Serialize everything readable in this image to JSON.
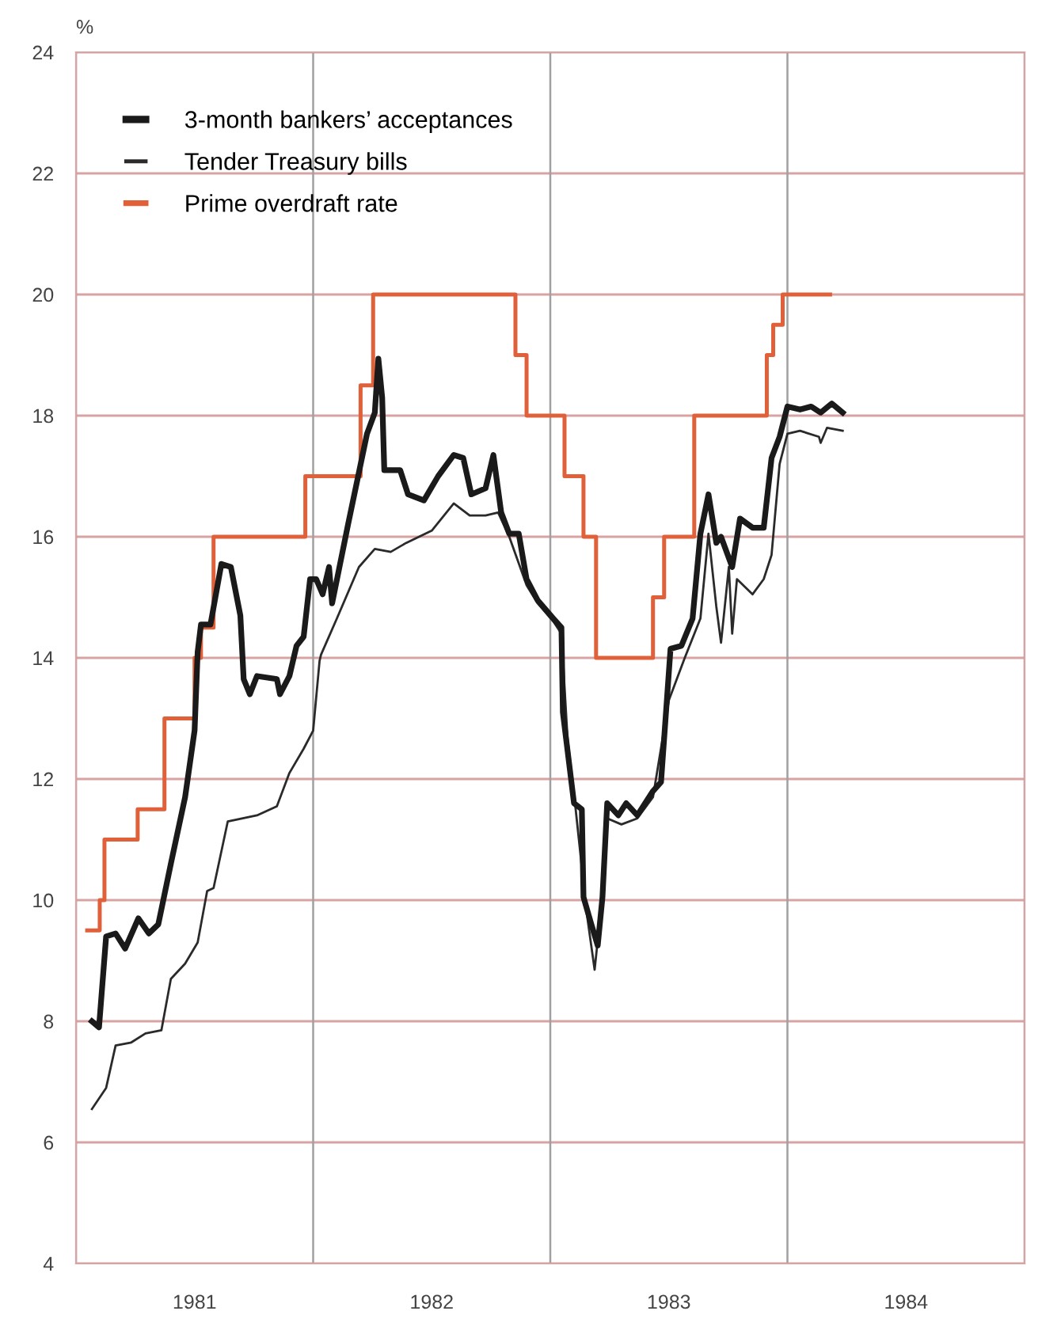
{
  "chart_data": {
    "type": "line",
    "ylabel": "%",
    "xlim": [
      1981,
      1985
    ],
    "xticks": [
      {
        "value": 1981,
        "label": null
      },
      {
        "value": 1981.5,
        "label": "1981"
      },
      {
        "value": 1982,
        "label": null
      },
      {
        "value": 1982.5,
        "label": "1982"
      },
      {
        "value": 1983,
        "label": null
      },
      {
        "value": 1983.5,
        "label": "1983"
      },
      {
        "value": 1984,
        "label": null
      },
      {
        "value": 1984.5,
        "label": "1984"
      },
      {
        "value": 1985,
        "label": null
      }
    ],
    "ylim": [
      4,
      24
    ],
    "yticks": [
      4,
      6,
      8,
      10,
      12,
      14,
      16,
      18,
      20,
      22,
      24
    ],
    "grid": true,
    "legend": "top left",
    "marker": "none",
    "line_style": "solid",
    "series": [
      {
        "name": "3-month bankers’ acceptances",
        "color": "#1a1a1a",
        "x": [
          1981.067,
          1981.097,
          1981.127,
          1981.167,
          1981.207,
          1981.263,
          1981.307,
          1981.347,
          1981.4,
          1981.46,
          1981.5,
          1981.513,
          1981.527,
          1981.567,
          1981.613,
          1981.653,
          1981.693,
          1981.707,
          1981.733,
          1981.763,
          1981.847,
          1981.86,
          1981.9,
          1981.93,
          1981.96,
          1981.987,
          1982.013,
          1982.04,
          1982.067,
          1982.08,
          1982.147,
          1982.227,
          1982.26,
          1982.275,
          1982.291,
          1982.3,
          1982.367,
          1982.4,
          1982.467,
          1982.527,
          1982.593,
          1982.633,
          1982.667,
          1982.727,
          1982.76,
          1982.793,
          1982.827,
          1982.867,
          1982.9,
          1982.947,
          1983.013,
          1983.047,
          1983.053,
          1983.1,
          1983.133,
          1983.14,
          1983.173,
          1983.2,
          1983.22,
          1983.24,
          1983.287,
          1983.32,
          1983.367,
          1983.433,
          1983.467,
          1983.507,
          1983.553,
          1983.6,
          1983.633,
          1983.667,
          1983.7,
          1983.72,
          1983.767,
          1983.8,
          1983.853,
          1983.9,
          1983.933,
          1983.967,
          1984.0,
          1984.053,
          1984.1,
          1984.14,
          1984.187,
          1984.233
        ],
        "values": [
          8.0,
          7.9,
          9.4,
          9.45,
          9.2,
          9.7,
          9.45,
          9.6,
          10.6,
          11.7,
          12.8,
          14.1,
          14.55,
          14.55,
          15.55,
          15.5,
          14.7,
          13.65,
          13.4,
          13.7,
          13.65,
          13.4,
          13.7,
          14.2,
          14.35,
          15.3,
          15.3,
          15.05,
          15.5,
          14.9,
          16.2,
          17.7,
          18.05,
          18.94,
          18.3,
          17.1,
          17.1,
          16.7,
          16.6,
          17.0,
          17.35,
          17.3,
          16.7,
          16.8,
          17.35,
          16.4,
          16.05,
          16.05,
          15.3,
          14.95,
          14.65,
          14.5,
          13.1,
          11.6,
          11.5,
          10.05,
          9.6,
          9.25,
          10.05,
          11.6,
          11.4,
          11.6,
          11.4,
          11.8,
          11.95,
          14.15,
          14.2,
          14.65,
          16.05,
          16.7,
          15.9,
          16.0,
          15.5,
          16.3,
          16.15,
          16.15,
          17.3,
          17.65,
          18.15,
          18.1,
          18.15,
          18.05,
          18.2,
          18.05
        ]
      },
      {
        "name": "Tender Treasury bills",
        "color": "#2a2a2a",
        "x": [
          1981.067,
          1981.127,
          1981.167,
          1981.233,
          1981.293,
          1981.36,
          1981.4,
          1981.46,
          1981.513,
          1981.553,
          1981.58,
          1981.64,
          1981.763,
          1981.847,
          1981.9,
          1981.96,
          1982.0,
          1982.027,
          1982.033,
          1982.1,
          1982.193,
          1982.26,
          1982.327,
          1982.393,
          1982.5,
          1982.593,
          1982.66,
          1982.727,
          1982.78,
          1982.827,
          1982.9,
          1982.947,
          1983.013,
          1983.047,
          1983.073,
          1983.107,
          1983.153,
          1983.187,
          1983.207,
          1983.24,
          1983.3,
          1983.367,
          1983.433,
          1983.5,
          1983.567,
          1983.633,
          1983.667,
          1983.7,
          1983.72,
          1983.753,
          1983.767,
          1983.787,
          1983.853,
          1983.9,
          1983.933,
          1983.967,
          1984.0,
          1984.053,
          1984.133,
          1984.14,
          1984.167,
          1984.233
        ],
        "values": [
          6.55,
          6.9,
          7.6,
          7.65,
          7.8,
          7.85,
          8.7,
          8.95,
          9.3,
          10.15,
          10.2,
          11.3,
          11.4,
          11.55,
          12.1,
          12.5,
          12.8,
          13.95,
          14.05,
          14.65,
          15.5,
          15.8,
          15.75,
          15.9,
          16.1,
          16.55,
          16.35,
          16.35,
          16.4,
          16.0,
          15.2,
          14.9,
          14.6,
          14.4,
          12.65,
          11.5,
          9.8,
          8.85,
          9.6,
          11.35,
          11.25,
          11.35,
          11.7,
          13.3,
          14.0,
          14.65,
          16.05,
          14.85,
          14.25,
          15.5,
          14.4,
          15.3,
          15.05,
          15.3,
          15.7,
          17.2,
          17.7,
          17.75,
          17.65,
          17.55,
          17.8,
          17.75
        ]
      },
      {
        "name": "Prime overdraft rate",
        "type": "step",
        "color": "#e0603a",
        "x": [
          1981.047,
          1981.1,
          1981.12,
          1981.26,
          1981.373,
          1981.5,
          1981.527,
          1981.58,
          1981.967,
          1982.2,
          1982.253,
          1982.853,
          1982.9,
          1983.06,
          1983.14,
          1983.193,
          1983.433,
          1983.48,
          1983.607,
          1983.913,
          1983.94,
          1983.98,
          1984.18
        ],
        "values": [
          9.5,
          10,
          11,
          11.5,
          13,
          14,
          14.5,
          16,
          17,
          18.5,
          20,
          19,
          18,
          17,
          16,
          14,
          15,
          16,
          18,
          19,
          19.5,
          20,
          20
        ]
      }
    ]
  }
}
